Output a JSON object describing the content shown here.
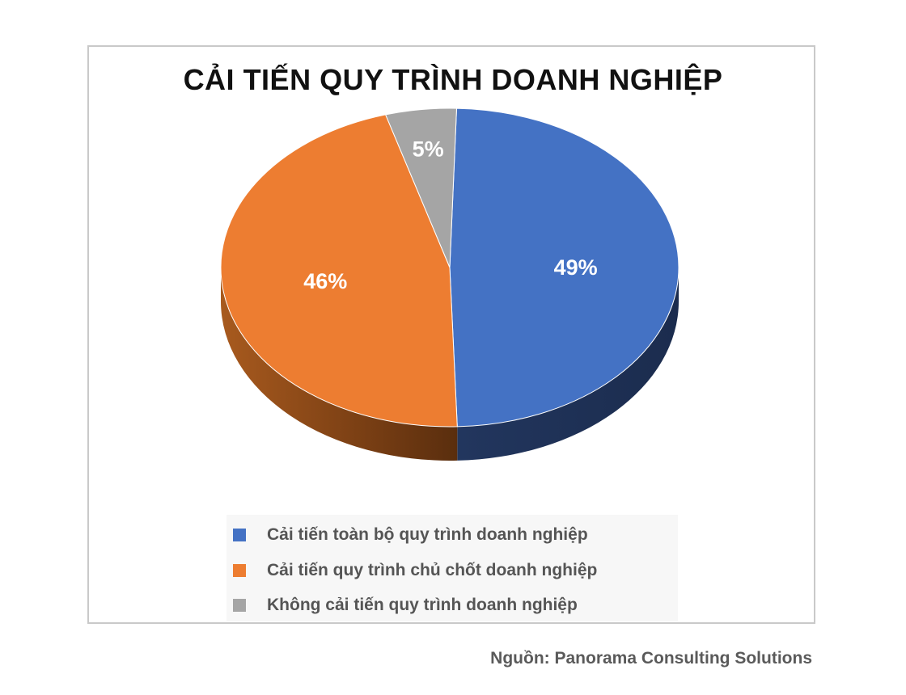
{
  "chart_data": {
    "type": "pie",
    "title": "CẢI TIẾN QUY TRÌNH DOANH NGHIỆP",
    "categories": [
      "Cải tiến toàn bộ quy trình doanh nghiệp",
      "Cải tiến quy trình chủ chốt doanh nghiệp",
      "Không cải tiến quy trình doanh nghiệp"
    ],
    "values": [
      49,
      46,
      5
    ],
    "data_labels": [
      "49%",
      "46%",
      "5%"
    ],
    "colors": [
      "#4472C4",
      "#ED7D31",
      "#A5A5A5"
    ],
    "style": "3d",
    "legend": "bottom"
  },
  "source": "Nguồn: Panorama Consulting Solutions"
}
